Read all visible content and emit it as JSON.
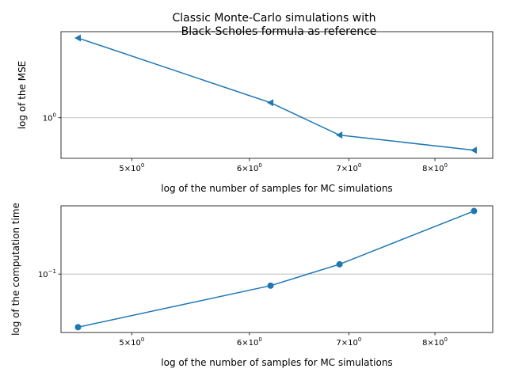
{
  "title_lines": [
    "Classic Monte-Carlo simulations with",
    "Black-Scholes formula as reference"
  ],
  "chart_data": [
    {
      "type": "line",
      "title": "Classic Monte-Carlo simulations with Black-Scholes formula as reference",
      "xlabel": "log of the number of samples for MC simulations",
      "ylabel": "log of the MSE",
      "xscale": "log",
      "yscale": "log",
      "grid": "y",
      "marker": "triangle-left",
      "color": "#1f77b4",
      "x_tick_labels": [
        {
          "value": 5,
          "base": "5×10",
          "exp": "0"
        },
        {
          "value": 6,
          "base": "6×10",
          "exp": "0"
        },
        {
          "value": 7,
          "base": "7×10",
          "exp": "0"
        },
        {
          "value": 8,
          "base": "8×10",
          "exp": "0"
        }
      ],
      "y_tick_labels": [
        {
          "value": 1,
          "base": "10",
          "exp": "0"
        }
      ],
      "xlim": [
        4.48,
        8.75
      ],
      "ylim": [
        0.42,
        6.3
      ],
      "x": [
        4.6,
        6.2,
        6.9,
        8.5
      ],
      "y": [
        5.5,
        1.38,
        0.69,
        0.5
      ]
    },
    {
      "type": "line",
      "xlabel": "log of the number of samples for MC simulations",
      "ylabel": "log of the computation time",
      "xscale": "log",
      "yscale": "log",
      "grid": "y",
      "marker": "circle",
      "color": "#1f77b4",
      "x_tick_labels": [
        {
          "value": 5,
          "base": "5×10",
          "exp": "0"
        },
        {
          "value": 6,
          "base": "6×10",
          "exp": "0"
        },
        {
          "value": 7,
          "base": "7×10",
          "exp": "0"
        },
        {
          "value": 8,
          "base": "8×10",
          "exp": "0"
        }
      ],
      "y_tick_labels": [
        {
          "value": 0.1,
          "base": "10",
          "exp": "−1"
        }
      ],
      "xlim": [
        4.48,
        8.75
      ],
      "ylim": [
        0.0305,
        0.4
      ],
      "x": [
        4.6,
        6.2,
        6.9,
        8.5
      ],
      "y": [
        0.034,
        0.079,
        0.122,
        0.36
      ]
    }
  ]
}
